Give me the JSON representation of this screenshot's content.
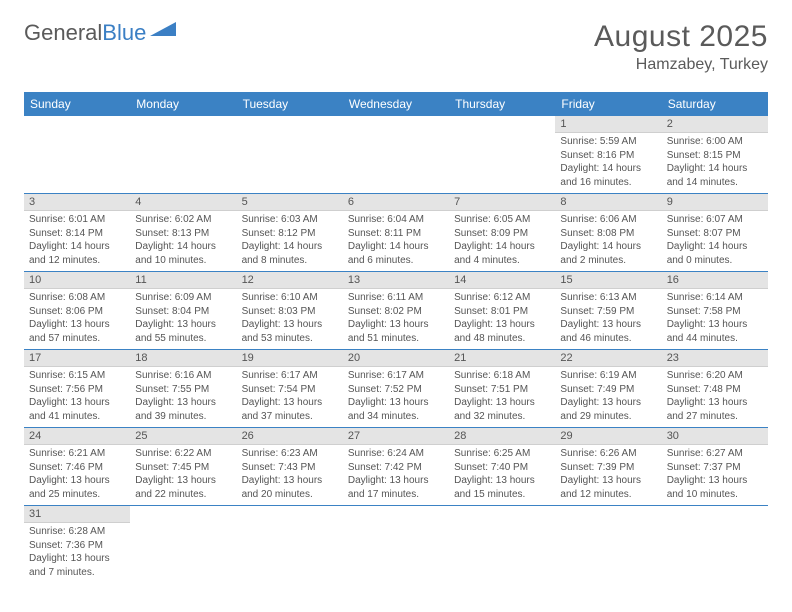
{
  "logo": {
    "text1": "General",
    "text2": "Blue"
  },
  "header": {
    "month": "August 2025",
    "location": "Hamzabey, Turkey"
  },
  "colors": {
    "header_bg": "#3b82c4",
    "header_text": "#ffffff",
    "daynum_bg": "#e4e4e4",
    "row_border": "#3b82c4",
    "text": "#555555"
  },
  "weekdays": [
    "Sunday",
    "Monday",
    "Tuesday",
    "Wednesday",
    "Thursday",
    "Friday",
    "Saturday"
  ],
  "weeks": [
    [
      null,
      null,
      null,
      null,
      null,
      {
        "n": "1",
        "sr": "Sunrise: 5:59 AM",
        "ss": "Sunset: 8:16 PM",
        "dl": "Daylight: 14 hours and 16 minutes."
      },
      {
        "n": "2",
        "sr": "Sunrise: 6:00 AM",
        "ss": "Sunset: 8:15 PM",
        "dl": "Daylight: 14 hours and 14 minutes."
      }
    ],
    [
      {
        "n": "3",
        "sr": "Sunrise: 6:01 AM",
        "ss": "Sunset: 8:14 PM",
        "dl": "Daylight: 14 hours and 12 minutes."
      },
      {
        "n": "4",
        "sr": "Sunrise: 6:02 AM",
        "ss": "Sunset: 8:13 PM",
        "dl": "Daylight: 14 hours and 10 minutes."
      },
      {
        "n": "5",
        "sr": "Sunrise: 6:03 AM",
        "ss": "Sunset: 8:12 PM",
        "dl": "Daylight: 14 hours and 8 minutes."
      },
      {
        "n": "6",
        "sr": "Sunrise: 6:04 AM",
        "ss": "Sunset: 8:11 PM",
        "dl": "Daylight: 14 hours and 6 minutes."
      },
      {
        "n": "7",
        "sr": "Sunrise: 6:05 AM",
        "ss": "Sunset: 8:09 PM",
        "dl": "Daylight: 14 hours and 4 minutes."
      },
      {
        "n": "8",
        "sr": "Sunrise: 6:06 AM",
        "ss": "Sunset: 8:08 PM",
        "dl": "Daylight: 14 hours and 2 minutes."
      },
      {
        "n": "9",
        "sr": "Sunrise: 6:07 AM",
        "ss": "Sunset: 8:07 PM",
        "dl": "Daylight: 14 hours and 0 minutes."
      }
    ],
    [
      {
        "n": "10",
        "sr": "Sunrise: 6:08 AM",
        "ss": "Sunset: 8:06 PM",
        "dl": "Daylight: 13 hours and 57 minutes."
      },
      {
        "n": "11",
        "sr": "Sunrise: 6:09 AM",
        "ss": "Sunset: 8:04 PM",
        "dl": "Daylight: 13 hours and 55 minutes."
      },
      {
        "n": "12",
        "sr": "Sunrise: 6:10 AM",
        "ss": "Sunset: 8:03 PM",
        "dl": "Daylight: 13 hours and 53 minutes."
      },
      {
        "n": "13",
        "sr": "Sunrise: 6:11 AM",
        "ss": "Sunset: 8:02 PM",
        "dl": "Daylight: 13 hours and 51 minutes."
      },
      {
        "n": "14",
        "sr": "Sunrise: 6:12 AM",
        "ss": "Sunset: 8:01 PM",
        "dl": "Daylight: 13 hours and 48 minutes."
      },
      {
        "n": "15",
        "sr": "Sunrise: 6:13 AM",
        "ss": "Sunset: 7:59 PM",
        "dl": "Daylight: 13 hours and 46 minutes."
      },
      {
        "n": "16",
        "sr": "Sunrise: 6:14 AM",
        "ss": "Sunset: 7:58 PM",
        "dl": "Daylight: 13 hours and 44 minutes."
      }
    ],
    [
      {
        "n": "17",
        "sr": "Sunrise: 6:15 AM",
        "ss": "Sunset: 7:56 PM",
        "dl": "Daylight: 13 hours and 41 minutes."
      },
      {
        "n": "18",
        "sr": "Sunrise: 6:16 AM",
        "ss": "Sunset: 7:55 PM",
        "dl": "Daylight: 13 hours and 39 minutes."
      },
      {
        "n": "19",
        "sr": "Sunrise: 6:17 AM",
        "ss": "Sunset: 7:54 PM",
        "dl": "Daylight: 13 hours and 37 minutes."
      },
      {
        "n": "20",
        "sr": "Sunrise: 6:17 AM",
        "ss": "Sunset: 7:52 PM",
        "dl": "Daylight: 13 hours and 34 minutes."
      },
      {
        "n": "21",
        "sr": "Sunrise: 6:18 AM",
        "ss": "Sunset: 7:51 PM",
        "dl": "Daylight: 13 hours and 32 minutes."
      },
      {
        "n": "22",
        "sr": "Sunrise: 6:19 AM",
        "ss": "Sunset: 7:49 PM",
        "dl": "Daylight: 13 hours and 29 minutes."
      },
      {
        "n": "23",
        "sr": "Sunrise: 6:20 AM",
        "ss": "Sunset: 7:48 PM",
        "dl": "Daylight: 13 hours and 27 minutes."
      }
    ],
    [
      {
        "n": "24",
        "sr": "Sunrise: 6:21 AM",
        "ss": "Sunset: 7:46 PM",
        "dl": "Daylight: 13 hours and 25 minutes."
      },
      {
        "n": "25",
        "sr": "Sunrise: 6:22 AM",
        "ss": "Sunset: 7:45 PM",
        "dl": "Daylight: 13 hours and 22 minutes."
      },
      {
        "n": "26",
        "sr": "Sunrise: 6:23 AM",
        "ss": "Sunset: 7:43 PM",
        "dl": "Daylight: 13 hours and 20 minutes."
      },
      {
        "n": "27",
        "sr": "Sunrise: 6:24 AM",
        "ss": "Sunset: 7:42 PM",
        "dl": "Daylight: 13 hours and 17 minutes."
      },
      {
        "n": "28",
        "sr": "Sunrise: 6:25 AM",
        "ss": "Sunset: 7:40 PM",
        "dl": "Daylight: 13 hours and 15 minutes."
      },
      {
        "n": "29",
        "sr": "Sunrise: 6:26 AM",
        "ss": "Sunset: 7:39 PM",
        "dl": "Daylight: 13 hours and 12 minutes."
      },
      {
        "n": "30",
        "sr": "Sunrise: 6:27 AM",
        "ss": "Sunset: 7:37 PM",
        "dl": "Daylight: 13 hours and 10 minutes."
      }
    ],
    [
      {
        "n": "31",
        "sr": "Sunrise: 6:28 AM",
        "ss": "Sunset: 7:36 PM",
        "dl": "Daylight: 13 hours and 7 minutes."
      },
      null,
      null,
      null,
      null,
      null,
      null
    ]
  ]
}
